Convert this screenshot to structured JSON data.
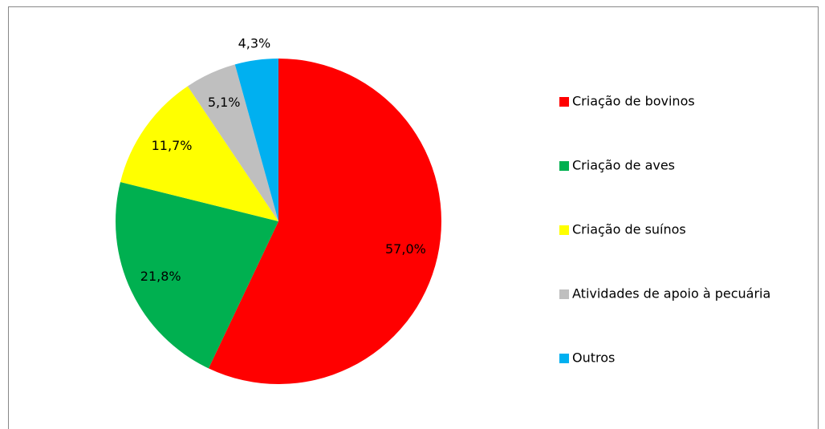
{
  "chart_data": {
    "type": "pie",
    "categories": [
      "Criação de bovinos",
      "Criação de aves",
      "Criação de suínos",
      "Atividades de apoio à pecuária",
      "Outros"
    ],
    "values": [
      57.0,
      21.8,
      11.7,
      5.1,
      4.3
    ],
    "value_labels": [
      "57,0%",
      "21,8%",
      "11,7%",
      "5,1%",
      "4,3%"
    ],
    "colors": [
      "#ff0000",
      "#00b050",
      "#ffff00",
      "#bfbfbf",
      "#00b0f0"
    ],
    "legend": "right"
  }
}
